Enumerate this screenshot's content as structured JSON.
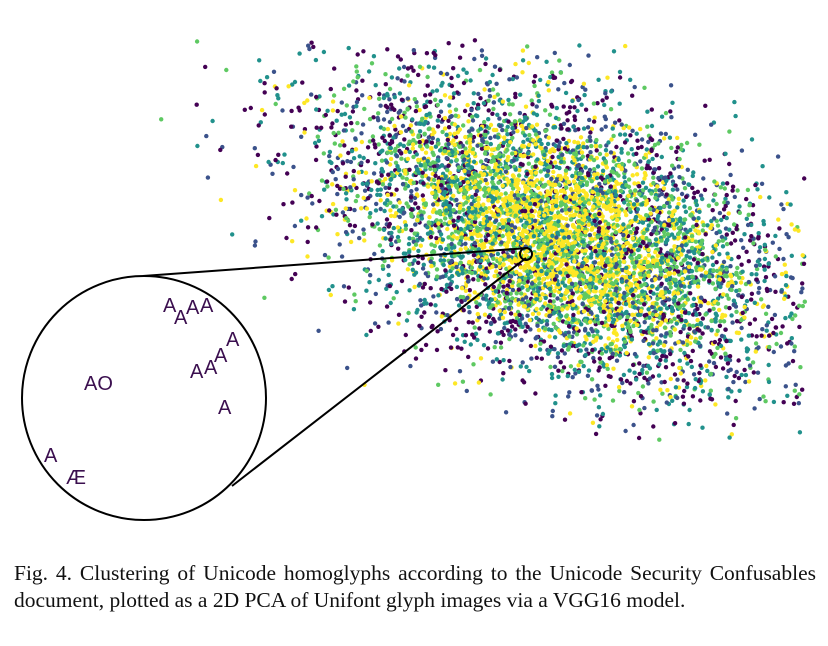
{
  "chart_data": {
    "type": "scatter",
    "title": "",
    "xlabel": "",
    "ylabel": "",
    "grid": false,
    "axes_visible": false,
    "colormap": [
      "#440154",
      "#3b528b",
      "#21918c",
      "#5ec962",
      "#fde725"
    ],
    "approx_point_count": 20000,
    "inset": {
      "label": "zoomed cluster of homoglyphs",
      "glyphs": [
        "A",
        "A",
        "A",
        "A",
        "A",
        "A",
        "A",
        "A",
        "AO",
        "A",
        "A",
        "Æ"
      ]
    }
  },
  "caption": {
    "text": "Fig. 4.  Clustering of Unicode homoglyphs according to the Unicode Security Confusables document, plotted as a 2D PCA of Unifont glyph images via a VGG16 model."
  }
}
